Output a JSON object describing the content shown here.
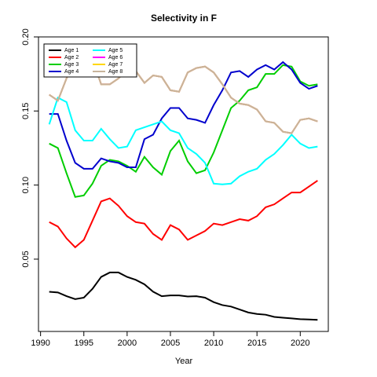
{
  "chart_data": {
    "type": "line",
    "title": "Selectivity in F",
    "x_label": "Year",
    "x": [
      1991,
      1992,
      1993,
      1994,
      1995,
      1996,
      1997,
      1998,
      1999,
      2000,
      2001,
      2002,
      2003,
      2004,
      2005,
      2006,
      2007,
      2008,
      2009,
      2010,
      2011,
      2012,
      2013,
      2014,
      2015,
      2016,
      2017,
      2018,
      2019,
      2020,
      2021,
      2022
    ],
    "series": [
      {
        "name": "Age 1",
        "color": "#000000",
        "values": [
          0.028,
          0.0275,
          0.025,
          0.023,
          0.024,
          0.03,
          0.038,
          0.041,
          0.041,
          0.038,
          0.036,
          0.033,
          0.028,
          0.025,
          0.0255,
          0.0255,
          0.0248,
          0.025,
          0.024,
          0.021,
          0.019,
          0.018,
          0.016,
          0.014,
          0.013,
          0.0125,
          0.011,
          0.0105,
          0.01,
          0.0095,
          0.0093,
          0.009
        ]
      },
      {
        "name": "Age 2",
        "color": "#ff0000",
        "values": [
          0.075,
          0.072,
          0.064,
          0.058,
          0.063,
          0.076,
          0.089,
          0.091,
          0.086,
          0.079,
          0.075,
          0.074,
          0.067,
          0.063,
          0.073,
          0.07,
          0.063,
          0.066,
          0.069,
          0.074,
          0.073,
          0.075,
          0.077,
          0.076,
          0.079,
          0.085,
          0.087,
          0.091,
          0.095,
          0.095,
          0.099,
          0.103
        ]
      },
      {
        "name": "Age 3",
        "color": "#00cd00",
        "values": [
          0.128,
          0.125,
          0.108,
          0.092,
          0.093,
          0.101,
          0.113,
          0.117,
          0.116,
          0.113,
          0.109,
          0.119,
          0.112,
          0.107,
          0.123,
          0.13,
          0.116,
          0.108,
          0.11,
          0.122,
          0.137,
          0.152,
          0.157,
          0.164,
          0.166,
          0.175,
          0.175,
          0.181,
          0.18,
          0.17,
          0.167,
          0.168
        ]
      },
      {
        "name": "Age 4",
        "color": "#0000cd",
        "values": [
          0.148,
          0.148,
          0.13,
          0.115,
          0.111,
          0.111,
          0.118,
          0.116,
          0.115,
          0.112,
          0.112,
          0.131,
          0.134,
          0.145,
          0.152,
          0.152,
          0.145,
          0.144,
          0.142,
          0.154,
          0.164,
          0.176,
          0.177,
          0.173,
          0.178,
          0.181,
          0.178,
          0.183,
          0.178,
          0.169,
          0.165,
          0.167
        ]
      },
      {
        "name": "Age 5",
        "color": "#00ffff",
        "values": [
          0.141,
          0.159,
          0.156,
          0.137,
          0.13,
          0.13,
          0.138,
          0.131,
          0.125,
          0.126,
          0.137,
          0.139,
          0.141,
          0.143,
          0.137,
          0.135,
          0.125,
          0.121,
          0.115,
          0.101,
          0.1005,
          0.101,
          0.106,
          0.109,
          0.111,
          0.117,
          0.121,
          0.127,
          0.134,
          0.128,
          0.125,
          0.126
        ]
      },
      {
        "name": "Age 6",
        "color": "#ff00ff",
        "values": [
          0.161,
          0.157,
          0.172,
          0.184,
          0.186,
          0.185,
          0.168,
          0.168,
          0.172,
          0.178,
          0.177,
          0.169,
          0.174,
          0.173,
          0.164,
          0.163,
          0.176,
          0.179,
          0.18,
          0.176,
          0.168,
          0.159,
          0.155,
          0.154,
          0.151,
          0.143,
          0.142,
          0.136,
          0.135,
          0.144,
          0.145,
          0.143
        ]
      },
      {
        "name": "Age 7",
        "color": "#ffd700",
        "values": [
          0.161,
          0.157,
          0.172,
          0.184,
          0.186,
          0.185,
          0.168,
          0.168,
          0.172,
          0.178,
          0.177,
          0.169,
          0.174,
          0.173,
          0.164,
          0.163,
          0.176,
          0.179,
          0.18,
          0.176,
          0.168,
          0.159,
          0.155,
          0.154,
          0.151,
          0.143,
          0.142,
          0.136,
          0.135,
          0.144,
          0.145,
          0.143
        ]
      },
      {
        "name": "Age 8",
        "color": "#c8b49b",
        "values": [
          0.161,
          0.157,
          0.172,
          0.184,
          0.186,
          0.185,
          0.168,
          0.168,
          0.172,
          0.178,
          0.177,
          0.169,
          0.174,
          0.173,
          0.164,
          0.163,
          0.176,
          0.179,
          0.18,
          0.176,
          0.168,
          0.159,
          0.155,
          0.154,
          0.151,
          0.143,
          0.142,
          0.136,
          0.135,
          0.144,
          0.145,
          0.143
        ]
      }
    ],
    "xlim": [
      1989.76,
      2023.24
    ],
    "xticks": [
      1990,
      1995,
      2000,
      2005,
      2010,
      2015,
      2020
    ],
    "ylim": [
      0.0012,
      0.2
    ],
    "yticks": [
      0.05,
      {
        "value": 0.1,
        "label": "0.10"
      },
      0.15,
      {
        "value": 0.2,
        "label": "0.20"
      }
    ],
    "legend": "top-left"
  }
}
